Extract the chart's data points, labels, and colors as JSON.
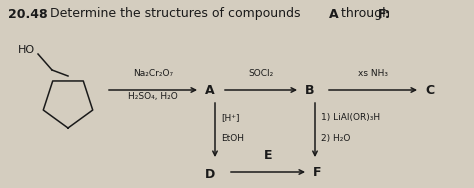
{
  "title_num": "20.48",
  "title_text": "  Determine the structures of compounds ",
  "title_bold_A": "A",
  "title_rest": " through ",
  "title_bold_F": "F:",
  "bg_color": "#d4cdbf",
  "text_color": "#1a1a1a",
  "reagent1_line1": "Na₂Cr₂O₇",
  "reagent1_line2": "H₂SO₄, H₂O",
  "reagent2": "SOCl₂",
  "reagent3": "xs NH₃",
  "reagent4_line1": "[H⁺]",
  "reagent4_line2": "EtOH",
  "reagent5_line1": "1) LiAl(OR)₃H",
  "reagent5_line2": "2) H₂O",
  "label_A": "A",
  "label_B": "B",
  "label_C": "C",
  "label_D": "D",
  "label_E": "E",
  "label_F": "F"
}
